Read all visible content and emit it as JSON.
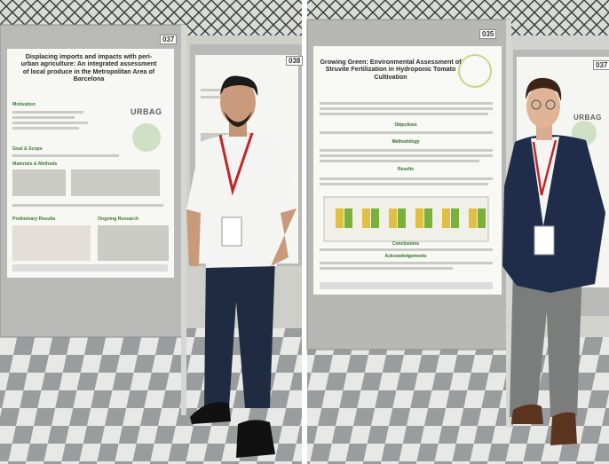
{
  "photos": [
    {
      "posters": [
        {
          "number": "037",
          "title": "Displacing imports and impacts with peri-urban agriculture: An integrated assessment of local produce in the Metropolitan Area of Barcelona",
          "logo": "URBAG",
          "sections": [
            "Motivation",
            "Goal & Scope",
            "Materials & Methods",
            "Preliminary Results",
            "Ongoing Research"
          ]
        },
        {
          "number": "038"
        }
      ]
    },
    {
      "posters": [
        {
          "number": "035",
          "title": "Growing Green: Environmental Assessment of Struvite Fertilization in Hydroponic Tomato Cultivation",
          "sections": [
            "Objectives",
            "Methodology",
            "Results",
            "Conclusions",
            "Acknowledgements"
          ]
        },
        {
          "number": "037",
          "logo": "URBAG"
        }
      ]
    }
  ]
}
